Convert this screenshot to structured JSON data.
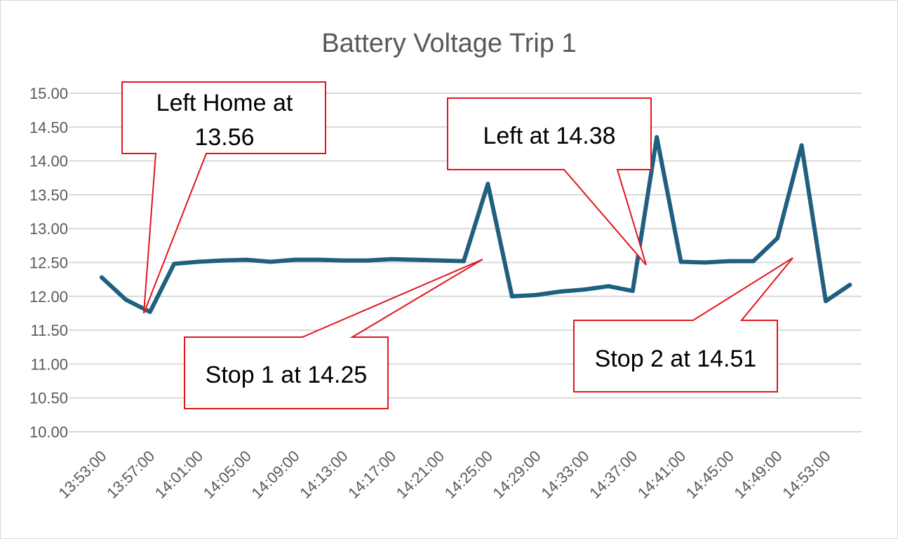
{
  "chart_data": {
    "type": "line",
    "title": "Battery Voltage Trip 1",
    "xlabel": "",
    "ylabel": "",
    "ylim": [
      10.0,
      15.0
    ],
    "y_ticks": [
      "10.00",
      "10.50",
      "11.00",
      "11.50",
      "12.00",
      "12.50",
      "13.00",
      "13.50",
      "14.00",
      "14.50",
      "15.00"
    ],
    "x_tick_labels": [
      "13:53:00",
      "13:57:00",
      "14:01:00",
      "14:05:00",
      "14:09:00",
      "14:13:00",
      "14:17:00",
      "14:21:00",
      "14:25:00",
      "14:29:00",
      "14:33:00",
      "14:37:00",
      "14:41:00",
      "14:45:00",
      "14:49:00",
      "14:53:00"
    ],
    "grid": "horizontal",
    "legend": "none",
    "series": [
      {
        "name": "",
        "color": "#1f5f7f",
        "x": [
          "13:53:00",
          "13:55:00",
          "13:57:00",
          "13:59:00",
          "14:01:00",
          "14:03:00",
          "14:05:00",
          "14:07:00",
          "14:09:00",
          "14:11:00",
          "14:13:00",
          "14:15:00",
          "14:17:00",
          "14:19:00",
          "14:21:00",
          "14:23:00",
          "14:25:00",
          "14:27:00",
          "14:29:00",
          "14:31:00",
          "14:33:00",
          "14:35:00",
          "14:37:00",
          "14:39:00",
          "14:41:00",
          "14:43:00",
          "14:45:00",
          "14:47:00",
          "14:49:00",
          "14:51:00",
          "14:53:00",
          "14:55:00"
        ],
        "values": [
          12.28,
          11.95,
          11.77,
          12.48,
          12.51,
          12.53,
          12.54,
          12.51,
          12.54,
          12.54,
          12.53,
          12.53,
          12.55,
          12.54,
          12.53,
          12.52,
          13.66,
          12.0,
          12.02,
          12.07,
          12.1,
          12.15,
          12.08,
          14.35,
          12.51,
          12.5,
          12.52,
          12.52,
          12.86,
          14.23,
          11.93,
          12.17
        ]
      }
    ],
    "annotations": [
      {
        "lines": [
          "Left Home at",
          "13.56"
        ]
      },
      {
        "lines": [
          "Stop 1 at 14.25"
        ]
      },
      {
        "lines": [
          "Left at 14.38"
        ]
      },
      {
        "lines": [
          "Stop 2 at 14.51"
        ]
      }
    ]
  }
}
